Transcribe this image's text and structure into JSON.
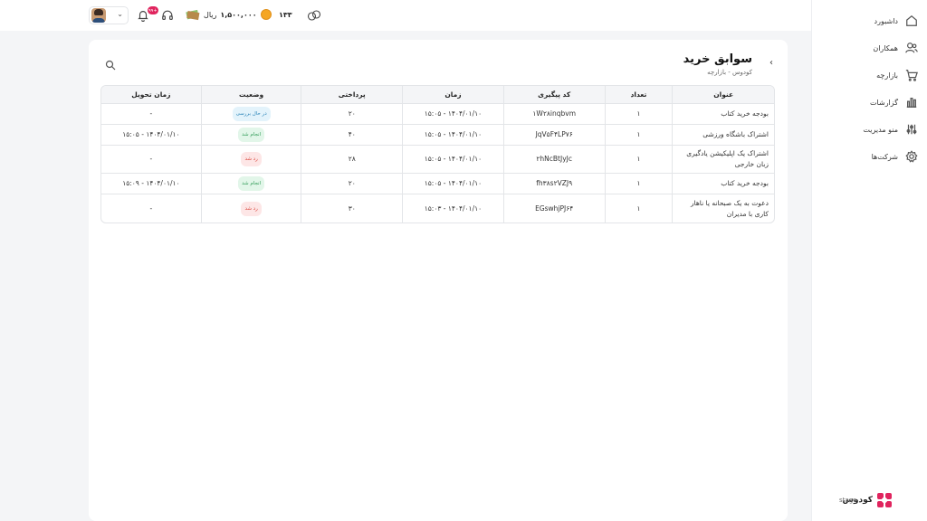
{
  "sidebar": {
    "items": [
      {
        "label": "داشبورد",
        "icon": "home-icon"
      },
      {
        "label": "همکاران",
        "icon": "users-icon"
      },
      {
        "label": "بازارچه",
        "icon": "cart-icon"
      },
      {
        "label": "گزارشات",
        "icon": "chart-icon"
      },
      {
        "label": "منو مدیریت",
        "icon": "sliders-icon"
      },
      {
        "label": "شرکت‌ها",
        "icon": "gear-icon"
      }
    ],
    "logo_text": "کودوس",
    "logo_sub": "stage"
  },
  "topbar": {
    "notification_count": "۹۹+",
    "wallet_amount": "۱,۵۰۰,۰۰۰",
    "wallet_currency": "ریال",
    "coin_count": "۱۳۳"
  },
  "page": {
    "title": "سوابق خرید",
    "breadcrumb": "کودوس - بازارچه"
  },
  "table": {
    "headers": {
      "title": "عنوان",
      "count": "تعداد",
      "tracking": "کد پیگیری",
      "time": "زمان",
      "payment": "پرداختی",
      "status": "وضعیت",
      "delivery": "زمان تحویل"
    },
    "rows": [
      {
        "title": "بودجه خرید کتاب",
        "count": "۱",
        "tracking": "۱W۲۸inqbvm",
        "time": "۱۴۰۴/۰۱/۱۰ - ۱۵:۰۵",
        "payment": "۲۰",
        "status": "در حال بررسی",
        "status_type": "review",
        "delivery": "-"
      },
      {
        "title": "اشتراک باشگاه ورزشی",
        "count": "۱",
        "tracking": "JqV۵F۴LP۷۶",
        "time": "۱۴۰۴/۰۱/۱۰ - ۱۵:۰۵",
        "payment": "۴۰",
        "status": "انجام شد",
        "status_type": "done",
        "delivery": "۱۴۰۴/۰۱/۱۰ - ۱۵:۰۵"
      },
      {
        "title": "اشتراک یک اپلیکیشن یادگیری زبان خارجی",
        "count": "۱",
        "tracking": "۲hNcBtJyJc",
        "time": "۱۴۰۴/۰۱/۱۰ - ۱۵:۰۵",
        "payment": "۲۸",
        "status": "رد شد",
        "status_type": "rejected",
        "delivery": "-"
      },
      {
        "title": "بودجه خرید کتاب",
        "count": "۱",
        "tracking": "fh۳۸s۲VZJ۹",
        "time": "۱۴۰۴/۰۱/۱۰ - ۱۵:۰۵",
        "payment": "۲۰",
        "status": "انجام شد",
        "status_type": "done",
        "delivery": "۱۴۰۴/۰۱/۱۰ - ۱۵:۰۹"
      },
      {
        "title": "دعوت به یک صبحانه یا ناهار کاری با مدیران",
        "count": "۱",
        "tracking": "EGswhjPJ۶۴",
        "time": "۱۴۰۴/۰۱/۱۰ - ۱۵:۰۳",
        "payment": "۳۰",
        "status": "رد شد",
        "status_type": "rejected",
        "delivery": "-"
      }
    ]
  },
  "colors": {
    "accent": "#e0245e",
    "status_review": "#2a84b8",
    "status_done": "#2e9a55",
    "status_rejected": "#d9443a",
    "coin": "#f5a623"
  }
}
